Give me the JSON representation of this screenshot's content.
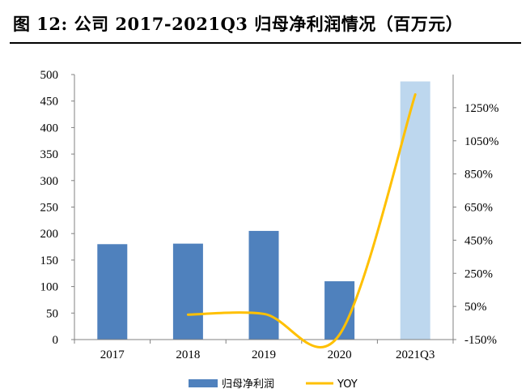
{
  "figure": {
    "title": "图  12: 公司 2017-2021Q3 归母净利润情况（百万元）"
  },
  "colors": {
    "bar": "#4F81BD",
    "bar_estimate": "#BDD7EE",
    "line": "#FFC000",
    "axis": "#808080"
  },
  "chart_data": {
    "type": "bar",
    "categories": [
      "2017",
      "2018",
      "2019",
      "2020",
      "2021Q3"
    ],
    "series": [
      {
        "name": "归母净利润",
        "type": "bar",
        "axis": "left",
        "values": [
          180,
          181,
          205,
          110,
          487
        ]
      },
      {
        "name": "YOY",
        "type": "line",
        "axis": "right",
        "values": [
          null,
          0.5,
          5,
          -120,
          1330
        ]
      }
    ],
    "y_left": {
      "min": 0,
      "max": 500,
      "ticks": [
        "0",
        "50",
        "100",
        "150",
        "200",
        "250",
        "300",
        "350",
        "400",
        "450",
        "500"
      ]
    },
    "y_right": {
      "min": -150,
      "max": 1450,
      "ticks": [
        "-150%",
        "50%",
        "250%",
        "450%",
        "650%",
        "850%",
        "1050%",
        "1250%"
      ]
    },
    "legend_position": "bottom",
    "grid": false
  }
}
